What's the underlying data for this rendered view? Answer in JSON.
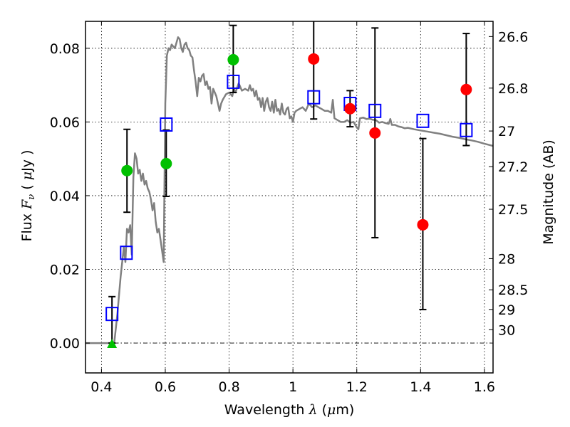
{
  "chart_data": {
    "type": "scatter",
    "title": "",
    "xlabel": "Wavelength  λ (μm)",
    "ylabel_left": "Flux  F_ν  ( μJy )",
    "ylabel_right": "Magnitude (AB)",
    "xlim": [
      0.35,
      1.627
    ],
    "ylim": [
      -0.0081,
      0.0873
    ],
    "grid": true,
    "x_ticks": [
      {
        "value": 0.4,
        "label": "0.4"
      },
      {
        "value": 0.6,
        "label": "0.6"
      },
      {
        "value": 0.8,
        "label": "0.8"
      },
      {
        "value": 1.0,
        "label": "1"
      },
      {
        "value": 1.2,
        "label": "1.2"
      },
      {
        "value": 1.4,
        "label": "1.4"
      },
      {
        "value": 1.6,
        "label": "1.6"
      }
    ],
    "y_ticks": [
      {
        "value": 0.0,
        "label": "0.00"
      },
      {
        "value": 0.02,
        "label": "0.02"
      },
      {
        "value": 0.04,
        "label": "0.04"
      },
      {
        "value": 0.06,
        "label": "0.06"
      },
      {
        "value": 0.08,
        "label": "0.08"
      }
    ],
    "magnitude_ticks": [
      {
        "mag": 26.6,
        "label": "26.6"
      },
      {
        "mag": 26.8,
        "label": "26.8"
      },
      {
        "mag": 27.0,
        "label": "27"
      },
      {
        "mag": 27.2,
        "label": "27.2"
      },
      {
        "mag": 27.5,
        "label": "27.5"
      },
      {
        "mag": 28.0,
        "label": "28"
      },
      {
        "mag": 28.5,
        "label": "28.5"
      },
      {
        "mag": 29.0,
        "label": "29"
      },
      {
        "mag": 30.0,
        "label": "30"
      }
    ],
    "magnitude_zero_point": 23.9,
    "zero_line": {
      "y": 0.0,
      "style": "dash-dot"
    },
    "series": [
      {
        "name": "model-spectrum",
        "kind": "line",
        "color": "#808080",
        "x": [
          0.35,
          0.42,
          0.43,
          0.44,
          0.45,
          0.46,
          0.47,
          0.475,
          0.48,
          0.485,
          0.49,
          0.495,
          0.5,
          0.505,
          0.51,
          0.515,
          0.52,
          0.525,
          0.53,
          0.535,
          0.54,
          0.545,
          0.55,
          0.555,
          0.56,
          0.565,
          0.57,
          0.575,
          0.58,
          0.585,
          0.59,
          0.595,
          0.6,
          0.605,
          0.61,
          0.615,
          0.62,
          0.63,
          0.64,
          0.645,
          0.65,
          0.655,
          0.66,
          0.665,
          0.67,
          0.675,
          0.68,
          0.685,
          0.69,
          0.695,
          0.7,
          0.705,
          0.71,
          0.715,
          0.72,
          0.725,
          0.73,
          0.735,
          0.74,
          0.745,
          0.75,
          0.755,
          0.76,
          0.765,
          0.77,
          0.775,
          0.78,
          0.79,
          0.8,
          0.81,
          0.815,
          0.82,
          0.83,
          0.84,
          0.85,
          0.86,
          0.865,
          0.87,
          0.875,
          0.88,
          0.885,
          0.89,
          0.895,
          0.9,
          0.905,
          0.91,
          0.915,
          0.92,
          0.925,
          0.93,
          0.935,
          0.94,
          0.945,
          0.95,
          0.955,
          0.96,
          0.965,
          0.97,
          0.975,
          0.98,
          0.985,
          0.99,
          0.995,
          1.0,
          1.005,
          1.01,
          1.02,
          1.03,
          1.04,
          1.05,
          1.06,
          1.07,
          1.08,
          1.09,
          1.1,
          1.11,
          1.12,
          1.125,
          1.13,
          1.14,
          1.15,
          1.16,
          1.17,
          1.18,
          1.19,
          1.2,
          1.205,
          1.21,
          1.22,
          1.23,
          1.24,
          1.25,
          1.26,
          1.27,
          1.28,
          1.29,
          1.3,
          1.305,
          1.31,
          1.32,
          1.33,
          1.34,
          1.35,
          1.36,
          1.38,
          1.4,
          1.42,
          1.44,
          1.46,
          1.48,
          1.5,
          1.52,
          1.54,
          1.56,
          1.58,
          1.6,
          1.627
        ],
        "y": [
          0.0,
          0.0,
          0.0,
          0.0,
          0.008,
          0.018,
          0.026,
          0.022,
          0.031,
          0.03,
          0.032,
          0.024,
          0.045,
          0.0515,
          0.05,
          0.046,
          0.047,
          0.044,
          0.046,
          0.043,
          0.044,
          0.042,
          0.041,
          0.039,
          0.036,
          0.038,
          0.033,
          0.03,
          0.031,
          0.028,
          0.025,
          0.022,
          0.065,
          0.078,
          0.08,
          0.0795,
          0.081,
          0.08,
          0.083,
          0.0825,
          0.08,
          0.079,
          0.081,
          0.0815,
          0.08,
          0.0795,
          0.078,
          0.0775,
          0.074,
          0.071,
          0.067,
          0.072,
          0.071,
          0.0725,
          0.073,
          0.07,
          0.071,
          0.069,
          0.0695,
          0.065,
          0.069,
          0.068,
          0.067,
          0.065,
          0.063,
          0.065,
          0.066,
          0.0675,
          0.068,
          0.067,
          0.069,
          0.068,
          0.0705,
          0.0685,
          0.069,
          0.0685,
          0.07,
          0.0685,
          0.069,
          0.067,
          0.0685,
          0.066,
          0.0665,
          0.064,
          0.0665,
          0.063,
          0.0655,
          0.0665,
          0.064,
          0.063,
          0.0655,
          0.0625,
          0.066,
          0.063,
          0.0635,
          0.062,
          0.065,
          0.0625,
          0.062,
          0.0635,
          0.064,
          0.061,
          0.0615,
          0.06,
          0.0625,
          0.063,
          0.0635,
          0.064,
          0.063,
          0.065,
          0.064,
          0.0645,
          0.064,
          0.0635,
          0.063,
          0.063,
          0.0625,
          0.066,
          0.061,
          0.0605,
          0.06,
          0.06,
          0.0605,
          0.0598,
          0.06,
          0.0585,
          0.058,
          0.061,
          0.0612,
          0.0608,
          0.0609,
          0.0606,
          0.0605,
          0.0598,
          0.06,
          0.0597,
          0.0595,
          0.0608,
          0.0592,
          0.0592,
          0.0588,
          0.0586,
          0.0583,
          0.0584,
          0.058,
          0.0577,
          0.0574,
          0.0571,
          0.0568,
          0.0564,
          0.056,
          0.0557,
          0.0553,
          0.055,
          0.0546,
          0.0541,
          0.0535
        ]
      },
      {
        "name": "model-photometry",
        "kind": "open-square",
        "color": "#0000ff",
        "x": [
          0.433,
          0.478,
          0.603,
          0.813,
          1.065,
          1.179,
          1.257,
          1.407,
          1.543
        ],
        "y": [
          0.0079,
          0.0245,
          0.0593,
          0.0709,
          0.0667,
          0.0649,
          0.063,
          0.0603,
          0.0578
        ]
      },
      {
        "name": "optical-detections",
        "kind": "filled-circle",
        "color": "#00c000",
        "x": [
          0.48,
          0.603,
          0.813
        ],
        "y": [
          0.0468,
          0.0487,
          0.0769
        ],
        "yerr_low": [
          0.0355,
          0.0398,
          0.068
        ],
        "yerr_high": [
          0.058,
          0.0578,
          0.0862
        ]
      },
      {
        "name": "nir-detections",
        "kind": "filled-circle",
        "color": "#ff0000",
        "x": [
          1.065,
          1.179,
          1.257,
          1.407,
          1.543
        ],
        "y": [
          0.0771,
          0.0636,
          0.057,
          0.0321,
          0.0688
        ],
        "yerr_low": [
          0.0608,
          0.0587,
          0.0286,
          0.0091,
          0.0536
        ],
        "yerr_high": [
          0.09,
          0.0685,
          0.0855,
          0.0555,
          0.084
        ]
      },
      {
        "name": "upper-limit",
        "kind": "triangle",
        "color": "#00c000",
        "x": [
          0.433
        ],
        "y": [
          0.0
        ],
        "yerr_low": [
          0.0
        ],
        "yerr_high": [
          0.0126
        ]
      }
    ]
  }
}
